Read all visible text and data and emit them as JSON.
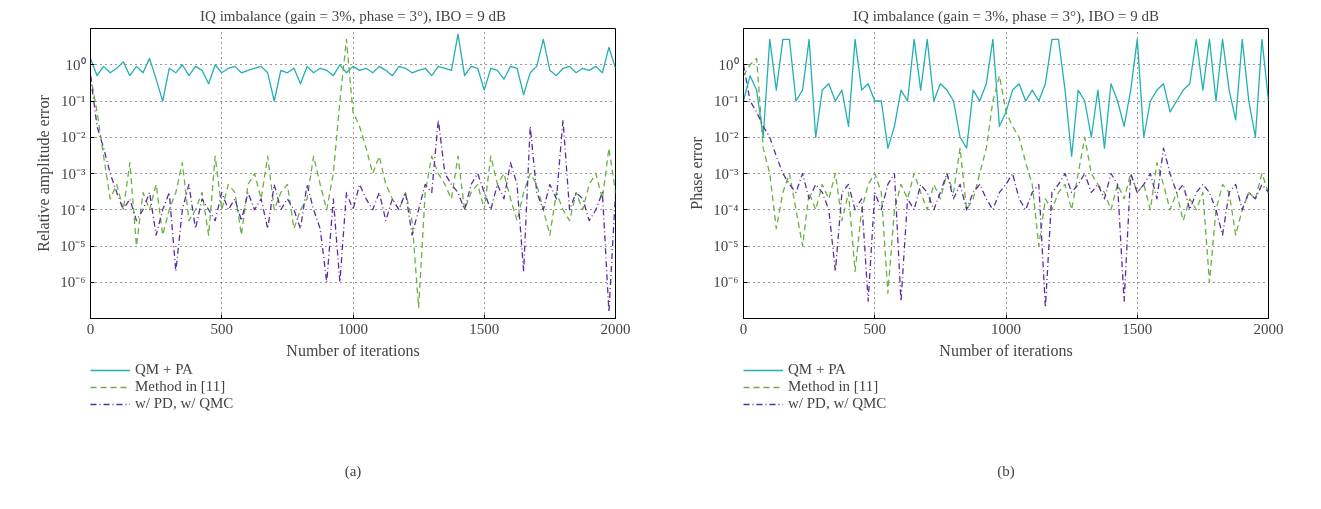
{
  "chart_data": [
    {
      "type": "line",
      "title": "IQ imbalance (gain = 3%, phase = 3°), IBO = 9 dB",
      "xlabel": "Number of iterations",
      "ylabel": "Relative amplitude error",
      "annotations": [
        "(a)"
      ],
      "log": "y",
      "grid": true,
      "legend": "bottom",
      "xlim": [
        0,
        2000
      ],
      "xticks": [
        0,
        500,
        1000,
        1500,
        2000
      ],
      "ylim": [
        1e-07,
        10
      ],
      "yticks": [
        {
          "value": 1e-06,
          "label": "10⁻⁶"
        },
        {
          "value": 1e-05,
          "label": "10⁻⁵"
        },
        {
          "value": 0.0001,
          "label": "10⁻⁴"
        },
        {
          "value": 0.001,
          "label": "10⁻³"
        },
        {
          "value": 0.01,
          "label": "10⁻²"
        },
        {
          "value": 0.1,
          "label": "10⁻¹"
        },
        {
          "value": 1,
          "label": "10⁰"
        }
      ],
      "x": [
        0,
        25,
        50,
        75,
        100,
        125,
        150,
        175,
        200,
        225,
        250,
        275,
        300,
        325,
        350,
        375,
        400,
        425,
        450,
        475,
        500,
        525,
        550,
        575,
        600,
        625,
        650,
        675,
        700,
        725,
        750,
        775,
        800,
        825,
        850,
        875,
        900,
        925,
        950,
        975,
        1000,
        1025,
        1050,
        1075,
        1100,
        1125,
        1150,
        1175,
        1200,
        1225,
        1250,
        1275,
        1300,
        1325,
        1350,
        1375,
        1400,
        1425,
        1450,
        1475,
        1500,
        1525,
        1550,
        1575,
        1600,
        1625,
        1650,
        1675,
        1700,
        1725,
        1750,
        1775,
        1800,
        1825,
        1850,
        1875,
        1900,
        1925,
        1950,
        1975,
        2000
      ],
      "series": [
        {
          "name": "QM + PA",
          "color": "#22b0b2",
          "line_style": "solid",
          "values": [
            1.5,
            0.5,
            0.9,
            0.6,
            0.8,
            1.2,
            0.5,
            0.9,
            0.6,
            1.5,
            0.4,
            0.1,
            0.8,
            0.6,
            1.0,
            0.5,
            0.9,
            0.7,
            0.3,
            1.0,
            0.6,
            0.8,
            0.9,
            0.6,
            0.7,
            0.8,
            0.9,
            0.6,
            0.1,
            0.7,
            0.6,
            0.8,
            0.3,
            0.9,
            0.6,
            0.8,
            0.7,
            0.5,
            1.0,
            0.6,
            0.9,
            0.7,
            0.8,
            0.6,
            0.9,
            0.7,
            0.5,
            0.9,
            0.8,
            0.6,
            0.7,
            0.8,
            0.5,
            0.9,
            0.8,
            0.7,
            7,
            0.5,
            0.9,
            0.8,
            0.2,
            0.8,
            0.7,
            0.4,
            0.9,
            0.8,
            0.15,
            0.6,
            0.9,
            5,
            0.7,
            0.5,
            0.8,
            0.9,
            0.6,
            0.8,
            0.7,
            0.9,
            0.6,
            3,
            0.8
          ]
        },
        {
          "name": "Method in [11]",
          "color": "#6ab043",
          "line_style": "dashed",
          "values": [
            0.5,
            0.05,
            0.003,
            0.0002,
            0.0005,
            0.0001,
            0.002,
            1e-05,
            0.0003,
            0.0001,
            0.0005,
            2e-05,
            0.0001,
            0.0003,
            0.002,
            5e-05,
            0.0001,
            0.0003,
            2e-05,
            0.003,
            0.0001,
            0.0005,
            0.0003,
            2e-05,
            0.0005,
            0.001,
            0.0002,
            0.003,
            0.0001,
            0.0003,
            0.0005,
            3e-05,
            0.0001,
            0.0002,
            0.003,
            0.0005,
            0.0001,
            0.001,
            0.1,
            5,
            0.05,
            0.02,
            0.005,
            0.001,
            0.003,
            0.0005,
            0.0002,
            0.0001,
            0.0003,
            5e-05,
            2e-07,
            0.0003,
            0.003,
            0.001,
            0.0005,
            0.0002,
            0.003,
            0.0001,
            0.0003,
            0.0005,
            0.0001,
            0.003,
            0.0005,
            0.001,
            0.0002,
            5e-05,
            0.0003,
            0.001,
            0.0005,
            0.0001,
            2e-05,
            0.0003,
            0.0001,
            5e-05,
            0.0003,
            0.0001,
            0.0005,
            0.001,
            0.0002,
            0.005,
            0.0003
          ]
        },
        {
          "name": "w/ PD, w/ QMC",
          "color": "#5a2ca0",
          "line_style": "dashdot",
          "values": [
            0.5,
            0.02,
            0.005,
            0.001,
            0.0003,
            0.0001,
            0.0002,
            5e-05,
            0.0001,
            0.0003,
            2e-05,
            0.0001,
            0.0003,
            2e-06,
            0.0001,
            0.0005,
            3e-05,
            0.0002,
            0.0001,
            5e-05,
            0.0003,
            0.0001,
            0.0002,
            5e-05,
            0.0003,
            0.0001,
            0.0002,
            3e-05,
            0.0005,
            0.0001,
            0.0002,
            0.0001,
            3e-05,
            0.0005,
            0.0001,
            3e-05,
            1e-06,
            0.0002,
            1e-06,
            0.0003,
            0.0001,
            0.0005,
            0.0002,
            0.0001,
            0.0003,
            5e-05,
            0.0002,
            0.0001,
            0.0003,
            2e-05,
            0.0001,
            0.0005,
            0.0003,
            0.03,
            0.001,
            0.0005,
            0.0003,
            0.0001,
            0.0005,
            0.001,
            0.0003,
            0.0001,
            0.0005,
            0.0002,
            0.002,
            0.0005,
            2e-06,
            0.02,
            0.0003,
            0.0001,
            0.0005,
            0.0002,
            0.03,
            0.0001,
            0.0003,
            0.0002,
            5e-05,
            0.0001,
            0.0003,
            1.5e-07,
            0.0003
          ]
        }
      ]
    },
    {
      "type": "line",
      "title": "IQ imbalance (gain = 3%, phase = 3°), IBO = 9 dB",
      "xlabel": "Number of iterations",
      "ylabel": "Phase error",
      "annotations": [
        "(b)"
      ],
      "log": "y",
      "grid": true,
      "legend": "bottom",
      "xlim": [
        0,
        2000
      ],
      "xticks": [
        0,
        500,
        1000,
        1500,
        2000
      ],
      "ylim": [
        1e-07,
        10
      ],
      "yticks": [
        {
          "value": 1e-06,
          "label": "10⁻⁶"
        },
        {
          "value": 1e-05,
          "label": "10⁻⁵"
        },
        {
          "value": 0.0001,
          "label": "10⁻⁴"
        },
        {
          "value": 0.001,
          "label": "10⁻³"
        },
        {
          "value": 0.01,
          "label": "10⁻²"
        },
        {
          "value": 0.1,
          "label": "10⁻¹"
        },
        {
          "value": 1,
          "label": "10⁰"
        }
      ],
      "x": [
        0,
        25,
        50,
        75,
        100,
        125,
        150,
        175,
        200,
        225,
        250,
        275,
        300,
        325,
        350,
        375,
        400,
        425,
        450,
        475,
        500,
        525,
        550,
        575,
        600,
        625,
        650,
        675,
        700,
        725,
        750,
        775,
        800,
        825,
        850,
        875,
        900,
        925,
        950,
        975,
        1000,
        1025,
        1050,
        1075,
        1100,
        1125,
        1150,
        1175,
        1200,
        1225,
        1250,
        1275,
        1300,
        1325,
        1350,
        1375,
        1400,
        1425,
        1450,
        1475,
        1500,
        1525,
        1550,
        1575,
        1600,
        1625,
        1650,
        1675,
        1700,
        1725,
        1750,
        1775,
        1800,
        1825,
        1850,
        1875,
        1900,
        1925,
        1950,
        1975,
        2000
      ],
      "series": [
        {
          "name": "QM + PA",
          "color": "#22b0b2",
          "line_style": "solid",
          "values": [
            0.1,
            0.5,
            0.2,
            0.01,
            5,
            0.2,
            5,
            5,
            0.1,
            0.2,
            5,
            0.01,
            0.2,
            0.3,
            0.1,
            0.2,
            0.02,
            5,
            0.2,
            0.3,
            0.1,
            0.1,
            0.005,
            0.02,
            0.2,
            0.1,
            5,
            0.2,
            5,
            0.1,
            0.3,
            0.2,
            0.1,
            0.01,
            0.005,
            0.2,
            0.1,
            0.3,
            5,
            0.02,
            0.05,
            0.2,
            0.3,
            0.1,
            0.2,
            0.1,
            0.3,
            5,
            5,
            0.2,
            0.003,
            0.2,
            0.1,
            0.01,
            0.2,
            0.005,
            0.3,
            0.1,
            0.02,
            0.2,
            5,
            0.01,
            0.1,
            0.2,
            0.3,
            0.05,
            0.1,
            0.2,
            0.3,
            5,
            0.2,
            5,
            0.1,
            5,
            0.2,
            0.03,
            5,
            0.1,
            0.01,
            5,
            0.1
          ]
        },
        {
          "name": "Method in [11]",
          "color": "#6ab043",
          "line_style": "dashed",
          "values": [
            0.5,
            1,
            1.5,
            0.005,
            0.001,
            3e-05,
            0.0003,
            0.001,
            0.0001,
            1e-05,
            0.0003,
            0.0001,
            0.0005,
            0.0002,
            0.001,
            5e-05,
            0.0003,
            2e-06,
            0.0001,
            0.0005,
            0.001,
            0.0003,
            5e-07,
            0.0001,
            0.0005,
            0.0002,
            0.001,
            0.0003,
            0.0001,
            0.0005,
            0.0002,
            0.001,
            0.0003,
            0.005,
            0.0001,
            0.0002,
            0.001,
            0.005,
            0.1,
            0.5,
            0.05,
            0.02,
            0.01,
            0.002,
            0.0005,
            1e-05,
            0.0002,
            0.0001,
            0.0003,
            0.0005,
            0.0001,
            0.001,
            0.01,
            0.001,
            0.0005,
            0.0003,
            0.0001,
            0.0005,
            0.0002,
            0.001,
            0.0003,
            0.0005,
            0.0001,
            0.002,
            0.0005,
            0.0001,
            0.0003,
            5e-05,
            0.0002,
            0.0001,
            0.0003,
            1e-06,
            0.0001,
            0.0005,
            0.0003,
            2e-05,
            0.0001,
            0.0003,
            0.0002,
            0.001,
            0.0003
          ]
        },
        {
          "name": "w/ PD, w/ QMC",
          "color": "#5a2ca0",
          "line_style": "dashdot",
          "values": [
            1,
            0.1,
            0.05,
            0.02,
            0.01,
            0.003,
            0.001,
            0.0005,
            0.0003,
            0.001,
            0.0002,
            0.0005,
            0.0003,
            0.0001,
            2e-06,
            0.0003,
            0.0005,
            0.0001,
            0.0002,
            3e-07,
            0.0003,
            0.0001,
            0.0005,
            0.001,
            3e-07,
            0.0002,
            0.0001,
            0.0005,
            0.0003,
            0.0001,
            0.0003,
            0.001,
            0.0002,
            0.0005,
            0.0001,
            0.0003,
            0.0005,
            0.0002,
            0.0001,
            0.0003,
            0.0005,
            0.001,
            0.0002,
            0.0001,
            0.0003,
            0.0005,
            2e-07,
            0.0003,
            0.0005,
            0.001,
            0.0003,
            0.0005,
            0.001,
            0.0003,
            0.0005,
            0.0002,
            0.001,
            0.0005,
            3e-07,
            0.001,
            0.0003,
            0.0005,
            0.001,
            0.0002,
            0.005,
            0.001,
            0.0003,
            0.0005,
            0.0001,
            0.0003,
            0.0005,
            0.0003,
            0.0001,
            2e-05,
            0.0003,
            0.0005,
            0.0001,
            0.0003,
            0.0002,
            0.0005,
            0.0003
          ]
        }
      ]
    }
  ]
}
